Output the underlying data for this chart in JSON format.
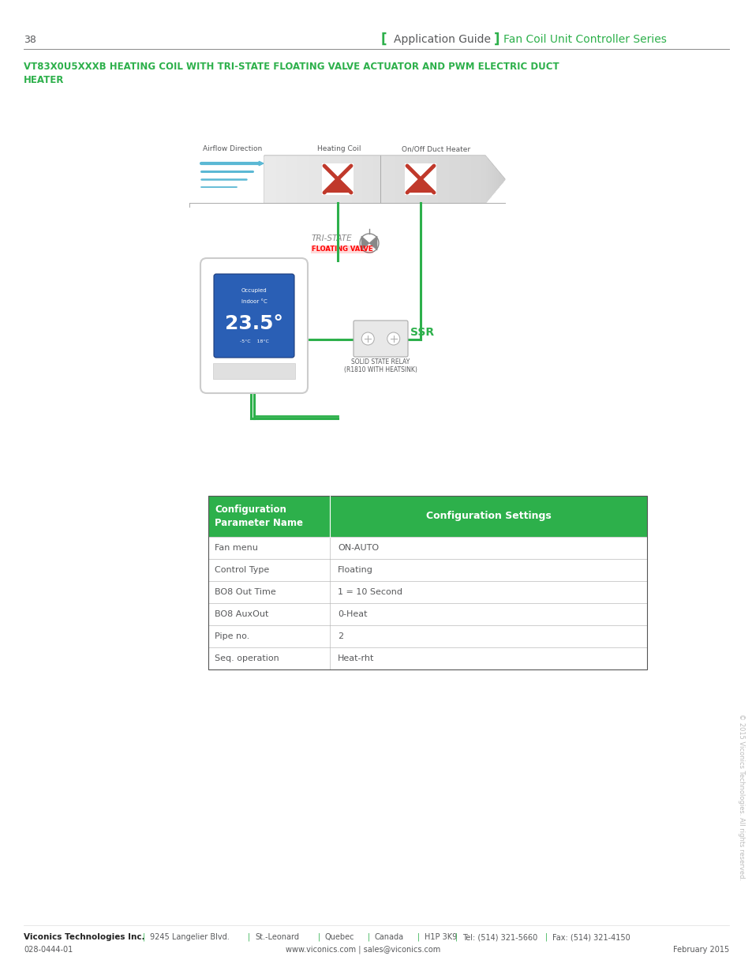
{
  "page_number": "38",
  "green_color": "#2db04b",
  "gray_text": "#58595b",
  "light_gray_text": "#aaaaaa",
  "border_gray": "#bbbbbb",
  "red_color": "#c0392b",
  "blue_color": "#5bb8d4",
  "dark_blue": "#1a6ebd",
  "duct_fill": "#e8e8e8",
  "duct_fill2": "#d0d0d0",
  "header_left_text": "Application Guide",
  "header_right_text": "Fan Coil Unit Controller Series",
  "title_line1": "VT83X0U5XXXB HEATING COIL WITH TRI-STATE FLOATING VALVE ACTUATOR AND PWM ELECTRIC DUCT",
  "title_line2": "HEATER",
  "diag_airflow_label": "Airflow Direction",
  "diag_heating_label": "Heating Coil",
  "diag_duct_label": "On/Off Duct Heater",
  "diag_tristate1": "TRI-STATE",
  "diag_tristate2": "FLOATING VALVE",
  "diag_ssr": "SSR",
  "diag_ssr_sub1": "SOLID STATE RELAY",
  "diag_ssr_sub2": "(R1810 WITH HEATSINK)",
  "table_col1_header": "Configuration\nParameter Name",
  "table_col2_header": "Configuration Settings",
  "table_rows": [
    [
      "Fan menu",
      "ON-AUTO"
    ],
    [
      "Control Type",
      "Floating"
    ],
    [
      "BO8 Out Time",
      "1 = 10 Second"
    ],
    [
      "BO8 AuxOut",
      "0-Heat"
    ],
    [
      "Pipe no.",
      "2"
    ],
    [
      "Seq. operation",
      "Heat-rht"
    ]
  ],
  "footer_bold": "Viconics Technologies Inc.",
  "footer_sep": "|",
  "footer_items": [
    "9245 Langelier Blvd.",
    "St.-Leonard",
    "Quebec",
    "Canada",
    "H1P 3K9",
    "Tel: (514) 321-5660",
    "Fax: (514) 321-4150"
  ],
  "footer_doc": "028-0444-01",
  "footer_web": "www.viconics.com | sales@viconics.com",
  "footer_date": "February 2015",
  "footer_copyright": "© 2015 Viconics Technologies. All rights reserved."
}
